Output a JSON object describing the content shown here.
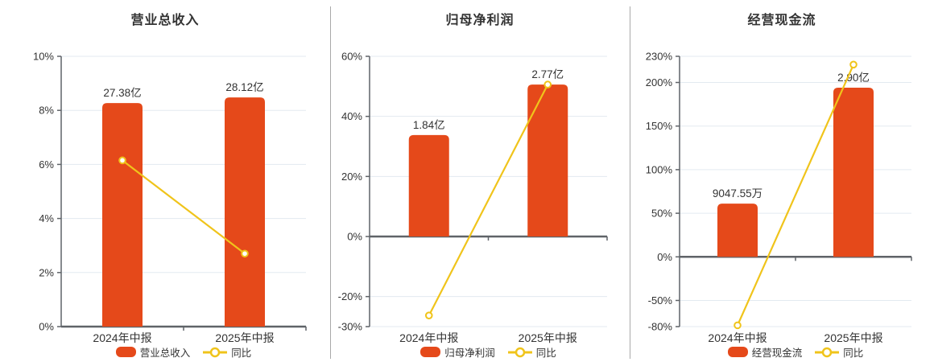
{
  "colors": {
    "bar_fill": "#e5491a",
    "line_stroke": "#f0c41b",
    "gridline": "#e3eaf0",
    "axis_line": "#5f6368",
    "text": "#333333",
    "divider": "#a9a9a9",
    "background": "#ffffff",
    "marker_fill": "#ffffff"
  },
  "chart_data": [
    {
      "type": "bar-line-combo",
      "title": "营业总收入",
      "categories": [
        "2024年中报",
        "2025年中报"
      ],
      "bar_series": {
        "name": "营业总收入",
        "display_values": [
          "27.38亿",
          "28.12亿"
        ],
        "plotted_axis_heights_pct": [
          8.27,
          8.48
        ]
      },
      "line_series": {
        "name": "同比",
        "values_pct": [
          6.15,
          2.7
        ]
      },
      "y_axis": {
        "min": 0,
        "max": 10,
        "ticks": [
          {
            "value": 0,
            "label": "0%"
          },
          {
            "value": 2,
            "label": "2%"
          },
          {
            "value": 4,
            "label": "4%"
          },
          {
            "value": 6,
            "label": "6%"
          },
          {
            "value": 8,
            "label": "8%"
          },
          {
            "value": 10,
            "label": "10%"
          }
        ]
      },
      "legend": [
        "营业总收入",
        "同比"
      ],
      "grid": true,
      "legend_position": "bottom"
    },
    {
      "type": "bar-line-combo",
      "title": "归母净利润",
      "categories": [
        "2024年中报",
        "2025年中报"
      ],
      "bar_series": {
        "name": "归母净利润",
        "display_values": [
          "1.84亿",
          "2.77亿"
        ],
        "plotted_axis_heights_pct": [
          33.8,
          50.6
        ]
      },
      "line_series": {
        "name": "同比",
        "values_pct": [
          -26.3,
          50.6
        ]
      },
      "y_axis": {
        "min": -30,
        "max": 60,
        "ticks": [
          {
            "value": -30,
            "label": "-30%"
          },
          {
            "value": -20,
            "label": "-20%"
          },
          {
            "value": 0,
            "label": "0%"
          },
          {
            "value": 20,
            "label": "20%"
          },
          {
            "value": 40,
            "label": "40%"
          },
          {
            "value": 60,
            "label": "60%"
          }
        ]
      },
      "legend": [
        "归母净利润",
        "同比"
      ],
      "grid": true,
      "legend_position": "bottom"
    },
    {
      "type": "bar-line-combo",
      "title": "经营现金流",
      "categories": [
        "2024年中报",
        "2025年中报"
      ],
      "bar_series": {
        "name": "经营现金流",
        "display_values": [
          "9047.55万",
          "2.90亿"
        ],
        "plotted_axis_heights_pct": [
          61.0,
          194.0
        ]
      },
      "line_series": {
        "name": "同比",
        "values_pct": [
          -78.5,
          220.5
        ]
      },
      "y_axis": {
        "min": -80,
        "max": 230,
        "ticks": [
          {
            "value": -80,
            "label": "-80%"
          },
          {
            "value": -50,
            "label": "-50%"
          },
          {
            "value": 0,
            "label": "0%"
          },
          {
            "value": 50,
            "label": "50%"
          },
          {
            "value": 100,
            "label": "100%"
          },
          {
            "value": 150,
            "label": "150%"
          },
          {
            "value": 200,
            "label": "200%"
          },
          {
            "value": 230,
            "label": "230%"
          }
        ]
      },
      "legend": [
        "经营现金流",
        "同比"
      ],
      "grid": true,
      "legend_position": "bottom"
    }
  ]
}
